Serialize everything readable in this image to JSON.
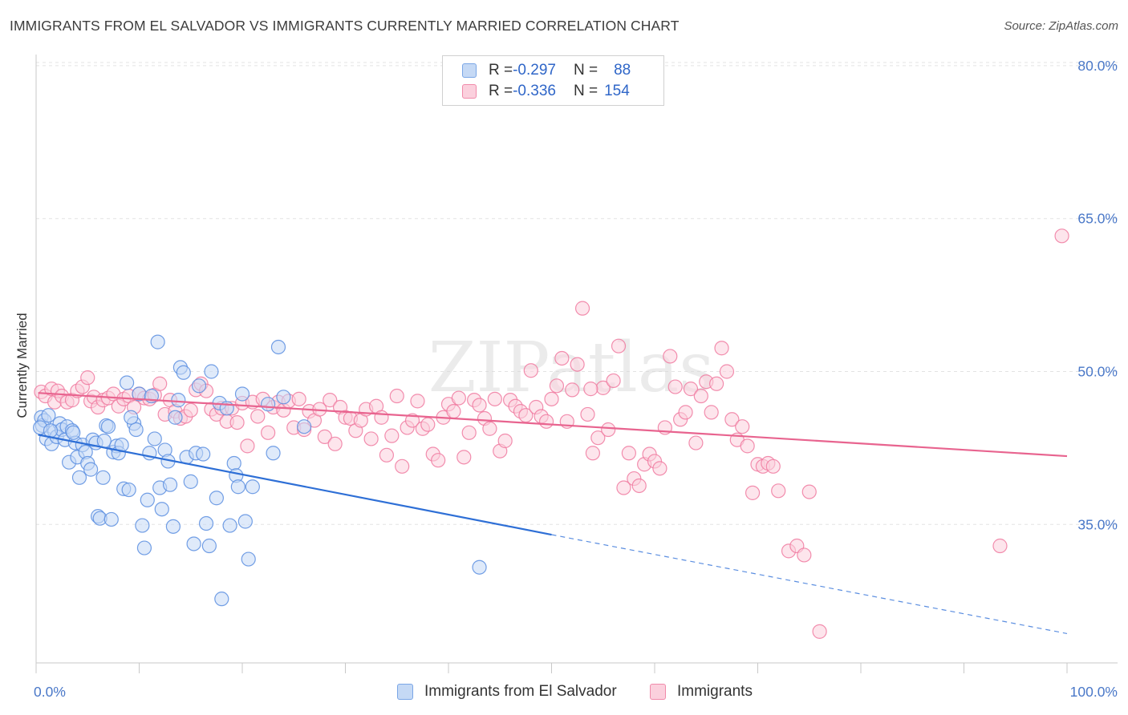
{
  "title": "IMMIGRANTS FROM EL SALVADOR VS IMMIGRANTS CURRENTLY MARRIED CORRELATION CHART",
  "source": "Source: ZipAtlas.com",
  "watermark": "ZIPatlas",
  "legend": {
    "rows": [
      {
        "r_label": "R = ",
        "r_value": "-0.297",
        "n_label": "N = ",
        "n_value": "88",
        "color": "#7aa6e6",
        "fill": "#c5d9f5"
      },
      {
        "r_label": "R = ",
        "r_value": "-0.336",
        "n_label": "N = ",
        "n_value": "154",
        "color": "#f08aaa",
        "fill": "#fbd0dd"
      }
    ]
  },
  "bottom_legend": [
    {
      "label": "Immigrants from El Salvador",
      "color": "#7aa6e6",
      "fill": "#c5d9f5"
    },
    {
      "label": "Immigrants",
      "color": "#f08aaa",
      "fill": "#fbd0dd"
    }
  ],
  "chart_data": {
    "type": "scatter",
    "title": "IMMIGRANTS FROM EL SALVADOR VS IMMIGRANTS CURRENTLY MARRIED CORRELATION CHART",
    "xlabel": "",
    "ylabel": "Currently Married",
    "xlim": [
      0,
      100
    ],
    "ylim": [
      21,
      83
    ],
    "x_tick_labels": [
      "0.0%",
      "100.0%"
    ],
    "y_ticks": [
      35,
      50,
      65,
      80
    ],
    "y_tick_labels": [
      "35.0%",
      "50.0%",
      "65.0%",
      "80.0%"
    ],
    "grid": "horizontal dashed",
    "series": [
      {
        "name": "Immigrants from El Salvador",
        "color": "#5b8ee0",
        "fill": "#c5d9f5",
        "trend": {
          "x0": 0.2,
          "y0": 43.8,
          "x1": 50,
          "y1": 34.0,
          "dash_x1": 100,
          "dash_y1": 24.3
        },
        "points": [
          [
            0.5,
            45.5
          ],
          [
            0.6,
            44.7
          ],
          [
            0.8,
            45.2
          ],
          [
            1.0,
            43.4
          ],
          [
            1.2,
            45.7
          ],
          [
            1.5,
            42.9
          ],
          [
            1.8,
            44.1
          ],
          [
            2.0,
            43.6
          ],
          [
            2.3,
            44.9
          ],
          [
            2.5,
            44.3
          ],
          [
            2.8,
            43.3
          ],
          [
            3.0,
            44.6
          ],
          [
            3.2,
            41.1
          ],
          [
            3.5,
            44.2
          ],
          [
            3.8,
            43.0
          ],
          [
            4.0,
            41.6
          ],
          [
            4.2,
            39.6
          ],
          [
            4.5,
            42.8
          ],
          [
            4.8,
            42.1
          ],
          [
            5.0,
            41.0
          ],
          [
            5.3,
            40.4
          ],
          [
            5.5,
            43.3
          ],
          [
            5.8,
            43.0
          ],
          [
            6.0,
            35.8
          ],
          [
            6.2,
            35.6
          ],
          [
            6.5,
            39.6
          ],
          [
            6.8,
            44.7
          ],
          [
            7.0,
            44.6
          ],
          [
            7.3,
            35.5
          ],
          [
            7.5,
            42.1
          ],
          [
            7.8,
            42.7
          ],
          [
            8.0,
            42.0
          ],
          [
            8.3,
            42.8
          ],
          [
            8.5,
            38.5
          ],
          [
            8.8,
            48.9
          ],
          [
            9.0,
            38.4
          ],
          [
            9.5,
            44.9
          ],
          [
            9.7,
            44.3
          ],
          [
            10.0,
            47.8
          ],
          [
            10.3,
            34.9
          ],
          [
            10.5,
            32.7
          ],
          [
            10.8,
            37.4
          ],
          [
            11.0,
            42.0
          ],
          [
            11.2,
            47.6
          ],
          [
            11.5,
            43.4
          ],
          [
            11.8,
            52.9
          ],
          [
            12.0,
            38.6
          ],
          [
            12.2,
            36.5
          ],
          [
            12.5,
            42.3
          ],
          [
            12.8,
            41.2
          ],
          [
            13.0,
            38.9
          ],
          [
            13.3,
            34.8
          ],
          [
            13.5,
            45.5
          ],
          [
            13.8,
            47.2
          ],
          [
            14.0,
            50.4
          ],
          [
            14.3,
            49.9
          ],
          [
            14.6,
            41.6
          ],
          [
            15.0,
            39.2
          ],
          [
            15.3,
            33.1
          ],
          [
            15.5,
            42.0
          ],
          [
            15.8,
            48.6
          ],
          [
            16.2,
            41.9
          ],
          [
            16.5,
            35.1
          ],
          [
            16.8,
            32.9
          ],
          [
            17.0,
            50.0
          ],
          [
            17.5,
            37.6
          ],
          [
            17.8,
            46.9
          ],
          [
            18.0,
            27.7
          ],
          [
            18.5,
            46.4
          ],
          [
            18.8,
            34.9
          ],
          [
            19.2,
            41.0
          ],
          [
            19.4,
            39.8
          ],
          [
            19.6,
            38.7
          ],
          [
            20.0,
            47.8
          ],
          [
            20.3,
            35.3
          ],
          [
            20.6,
            31.6
          ],
          [
            21.0,
            38.7
          ],
          [
            22.5,
            46.8
          ],
          [
            23.0,
            42.0
          ],
          [
            23.5,
            52.4
          ],
          [
            24.0,
            47.5
          ],
          [
            26.0,
            44.6
          ],
          [
            43.0,
            30.8
          ],
          [
            0.4,
            44.5
          ],
          [
            1.4,
            44.2
          ],
          [
            3.6,
            44.0
          ],
          [
            6.6,
            43.2
          ],
          [
            9.2,
            45.5
          ]
        ]
      },
      {
        "name": "Immigrants",
        "color": "#f07aa0",
        "fill": "#fbd0dd",
        "trend": {
          "x0": 0.2,
          "y0": 47.9,
          "x1": 100,
          "y1": 41.7
        },
        "points": [
          [
            0.5,
            48.0
          ],
          [
            0.9,
            47.6
          ],
          [
            1.5,
            48.3
          ],
          [
            1.8,
            47.0
          ],
          [
            2.1,
            48.1
          ],
          [
            2.5,
            47.6
          ],
          [
            3.0,
            47.0
          ],
          [
            3.5,
            47.2
          ],
          [
            4.0,
            48.1
          ],
          [
            4.5,
            48.5
          ],
          [
            5.0,
            49.4
          ],
          [
            5.3,
            47.1
          ],
          [
            5.6,
            47.5
          ],
          [
            6.0,
            46.5
          ],
          [
            6.5,
            47.2
          ],
          [
            7.0,
            47.4
          ],
          [
            7.5,
            47.8
          ],
          [
            8.0,
            46.6
          ],
          [
            8.5,
            47.3
          ],
          [
            9.0,
            47.6
          ],
          [
            9.5,
            46.5
          ],
          [
            10.0,
            47.8
          ],
          [
            10.5,
            47.4
          ],
          [
            11.0,
            47.3
          ],
          [
            11.5,
            47.7
          ],
          [
            12.0,
            48.8
          ],
          [
            12.5,
            45.8
          ],
          [
            13.0,
            47.2
          ],
          [
            13.5,
            46.1
          ],
          [
            14.0,
            45.4
          ],
          [
            14.5,
            45.6
          ],
          [
            15.0,
            46.2
          ],
          [
            15.5,
            48.2
          ],
          [
            16.0,
            48.8
          ],
          [
            16.5,
            48.1
          ],
          [
            17.0,
            46.3
          ],
          [
            17.5,
            45.8
          ],
          [
            18.0,
            46.4
          ],
          [
            18.5,
            45.1
          ],
          [
            19.0,
            46.4
          ],
          [
            19.5,
            45.0
          ],
          [
            20.0,
            46.9
          ],
          [
            20.5,
            42.7
          ],
          [
            21.0,
            47.0
          ],
          [
            21.5,
            45.6
          ],
          [
            22.0,
            47.3
          ],
          [
            22.5,
            44.0
          ],
          [
            23.0,
            46.5
          ],
          [
            23.5,
            47.0
          ],
          [
            24.0,
            46.2
          ],
          [
            24.5,
            47.1
          ],
          [
            25.0,
            44.5
          ],
          [
            25.5,
            47.3
          ],
          [
            26.0,
            44.3
          ],
          [
            26.5,
            46.1
          ],
          [
            27.0,
            45.2
          ],
          [
            27.5,
            46.3
          ],
          [
            28.0,
            43.6
          ],
          [
            28.5,
            47.2
          ],
          [
            29.0,
            42.9
          ],
          [
            29.5,
            46.5
          ],
          [
            30.0,
            45.5
          ],
          [
            30.5,
            45.4
          ],
          [
            31.0,
            44.2
          ],
          [
            31.5,
            45.2
          ],
          [
            32.0,
            46.3
          ],
          [
            32.5,
            43.4
          ],
          [
            33.0,
            46.6
          ],
          [
            33.5,
            45.5
          ],
          [
            34.0,
            41.8
          ],
          [
            34.5,
            43.7
          ],
          [
            35.0,
            47.6
          ],
          [
            35.5,
            40.7
          ],
          [
            36.0,
            44.5
          ],
          [
            36.5,
            45.2
          ],
          [
            37.0,
            47.1
          ],
          [
            37.5,
            44.4
          ],
          [
            38.0,
            44.8
          ],
          [
            38.5,
            41.9
          ],
          [
            39.0,
            41.3
          ],
          [
            39.5,
            45.5
          ],
          [
            40.0,
            46.8
          ],
          [
            40.5,
            46.1
          ],
          [
            41.0,
            47.4
          ],
          [
            41.5,
            41.6
          ],
          [
            42.0,
            44.0
          ],
          [
            42.5,
            47.2
          ],
          [
            43.0,
            46.7
          ],
          [
            43.5,
            45.4
          ],
          [
            44.0,
            44.4
          ],
          [
            44.5,
            47.3
          ],
          [
            45.0,
            42.2
          ],
          [
            45.5,
            43.2
          ],
          [
            46.0,
            47.2
          ],
          [
            46.5,
            46.6
          ],
          [
            47.0,
            46.1
          ],
          [
            47.5,
            45.7
          ],
          [
            48.0,
            50.1
          ],
          [
            48.5,
            46.5
          ],
          [
            49.0,
            45.6
          ],
          [
            49.5,
            45.1
          ],
          [
            50.0,
            47.3
          ],
          [
            50.5,
            48.6
          ],
          [
            51.0,
            51.3
          ],
          [
            51.5,
            45.1
          ],
          [
            52.0,
            48.2
          ],
          [
            52.5,
            50.7
          ],
          [
            53.0,
            56.2
          ],
          [
            53.5,
            45.8
          ],
          [
            54.0,
            42.0
          ],
          [
            54.5,
            43.5
          ],
          [
            55.0,
            48.4
          ],
          [
            55.5,
            44.3
          ],
          [
            56.0,
            49.1
          ],
          [
            56.5,
            52.5
          ],
          [
            57.0,
            38.6
          ],
          [
            57.5,
            42.0
          ],
          [
            58.0,
            39.5
          ],
          [
            58.5,
            38.8
          ],
          [
            59.0,
            40.9
          ],
          [
            59.5,
            41.9
          ],
          [
            60.0,
            41.2
          ],
          [
            60.5,
            40.5
          ],
          [
            61.0,
            44.5
          ],
          [
            61.5,
            51.5
          ],
          [
            62.0,
            48.5
          ],
          [
            62.5,
            45.3
          ],
          [
            63.0,
            46.0
          ],
          [
            63.5,
            48.3
          ],
          [
            64.0,
            43.0
          ],
          [
            64.5,
            47.6
          ],
          [
            65.0,
            49.0
          ],
          [
            65.5,
            46.0
          ],
          [
            66.0,
            48.8
          ],
          [
            66.5,
            52.3
          ],
          [
            67.0,
            50.0
          ],
          [
            67.5,
            45.3
          ],
          [
            68.0,
            43.3
          ],
          [
            68.5,
            44.6
          ],
          [
            69.0,
            42.7
          ],
          [
            69.5,
            38.1
          ],
          [
            70.0,
            40.9
          ],
          [
            70.5,
            40.7
          ],
          [
            71.0,
            41.0
          ],
          [
            71.5,
            40.7
          ],
          [
            72.0,
            38.3
          ],
          [
            73.0,
            32.4
          ],
          [
            73.8,
            32.9
          ],
          [
            74.5,
            32.0
          ],
          [
            75.0,
            38.2
          ],
          [
            76.0,
            24.5
          ],
          [
            93.5,
            32.9
          ],
          [
            99.5,
            63.3
          ],
          [
            53.8,
            48.3
          ]
        ]
      }
    ]
  }
}
